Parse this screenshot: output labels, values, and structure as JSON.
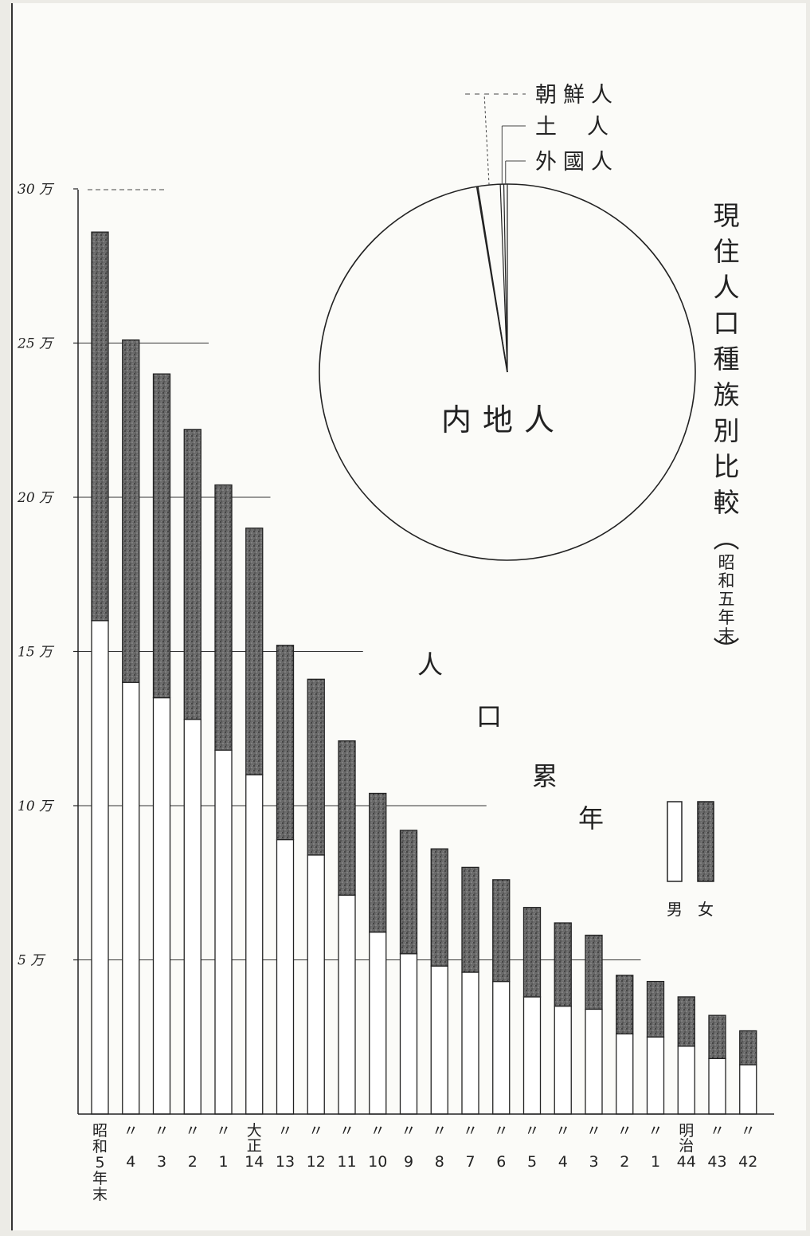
{
  "chart_data": [
    {
      "type": "bar",
      "stacked": true,
      "title": "人口累年",
      "legend": {
        "placement": "right",
        "labels": [
          "男",
          "女"
        ]
      },
      "y_unit": "万",
      "yticks": [
        {
          "value": 5,
          "label": "5 万"
        },
        {
          "value": 10,
          "label": "10 万"
        },
        {
          "value": 15,
          "label": "15 万"
        },
        {
          "value": 20,
          "label": "20 万"
        },
        {
          "value": 25,
          "label": "25 万"
        },
        {
          "value": 30,
          "label": "30 万"
        }
      ],
      "ylim": [
        0,
        30
      ],
      "grid": false,
      "categories": [
        "昭和5年末",
        "〃4",
        "〃3",
        "〃2",
        "〃1",
        "大正14",
        "〃13",
        "〃12",
        "〃11",
        "〃10",
        "〃9",
        "〃8",
        "〃7",
        "〃6",
        "〃5",
        "〃4",
        "〃3",
        "〃2",
        "〃1",
        "明治44",
        "〃43",
        "〃42"
      ],
      "category_labels": [
        {
          "top": "",
          "num": "昭和5年末"
        },
        {
          "top": "〃",
          "num": "4"
        },
        {
          "top": "〃",
          "num": "3"
        },
        {
          "top": "〃",
          "num": "2"
        },
        {
          "top": "〃",
          "num": "1"
        },
        {
          "top": "大正",
          "num": "14"
        },
        {
          "top": "〃",
          "num": "13"
        },
        {
          "top": "〃",
          "num": "12"
        },
        {
          "top": "〃",
          "num": "11"
        },
        {
          "top": "〃",
          "num": "10"
        },
        {
          "top": "〃",
          "num": "9"
        },
        {
          "top": "〃",
          "num": "8"
        },
        {
          "top": "〃",
          "num": "7"
        },
        {
          "top": "〃",
          "num": "6"
        },
        {
          "top": "〃",
          "num": "5"
        },
        {
          "top": "〃",
          "num": "4"
        },
        {
          "top": "〃",
          "num": "3"
        },
        {
          "top": "〃",
          "num": "2"
        },
        {
          "top": "〃",
          "num": "1"
        },
        {
          "top": "明治",
          "num": "44"
        },
        {
          "top": "〃",
          "num": "43"
        },
        {
          "top": "〃",
          "num": "42"
        }
      ],
      "series": [
        {
          "name": "男",
          "color": "#ffffff",
          "values": [
            16.0,
            14.0,
            13.5,
            12.8,
            11.8,
            11.0,
            8.9,
            8.4,
            7.1,
            5.9,
            5.2,
            4.8,
            4.6,
            4.3,
            3.8,
            3.5,
            3.4,
            2.6,
            2.5,
            2.2,
            1.8,
            1.6
          ]
        },
        {
          "name": "女",
          "color": "#555555",
          "values": [
            12.6,
            11.1,
            10.5,
            9.4,
            8.6,
            8.0,
            6.3,
            5.7,
            5.0,
            4.5,
            4.0,
            3.8,
            3.4,
            3.3,
            2.9,
            2.7,
            2.4,
            1.9,
            1.8,
            1.6,
            1.4,
            1.1
          ]
        }
      ]
    },
    {
      "type": "pie",
      "title": "現住人口種族別比較(昭和五年末)",
      "slices": [
        {
          "label": "内地人",
          "value": 97.5
        },
        {
          "label": "朝鮮人",
          "value": 1.9
        },
        {
          "label": "土人",
          "value": 0.3
        },
        {
          "label": "外國人",
          "value": 0.3
        }
      ]
    }
  ]
}
